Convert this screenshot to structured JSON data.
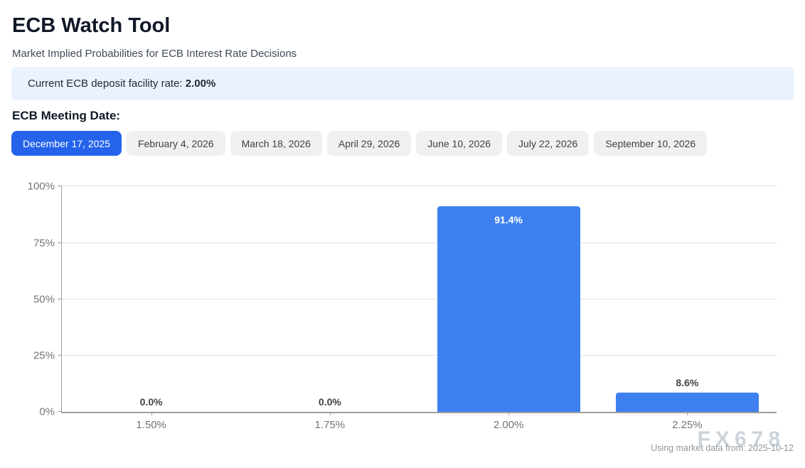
{
  "header": {
    "title": "ECB Watch Tool",
    "subtitle": "Market Implied Probabilities for ECB Interest Rate Decisions"
  },
  "banner": {
    "label": "Current ECB deposit facility rate: ",
    "value": "2.00%"
  },
  "meeting_section": {
    "heading": "ECB Meeting Date:",
    "dates": [
      {
        "label": "December 17, 2025",
        "active": true
      },
      {
        "label": "February 4, 2026",
        "active": false
      },
      {
        "label": "March 18, 2026",
        "active": false
      },
      {
        "label": "April 29, 2026",
        "active": false
      },
      {
        "label": "June 10, 2026",
        "active": false
      },
      {
        "label": "July 22, 2026",
        "active": false
      },
      {
        "label": "September 10, 2026",
        "active": false
      }
    ]
  },
  "chart_data": {
    "type": "bar",
    "title": "",
    "xlabel": "",
    "ylabel": "",
    "categories": [
      "1.50%",
      "1.75%",
      "2.00%",
      "2.25%"
    ],
    "values": [
      0.0,
      0.0,
      91.4,
      8.6
    ],
    "value_labels": [
      "0.0%",
      "0.0%",
      "91.4%",
      "8.6%"
    ],
    "y_ticks": [
      "0%",
      "25%",
      "50%",
      "75%",
      "100%"
    ],
    "ylim": [
      0,
      100
    ],
    "grid": true,
    "legend": false,
    "bar_color": "#3e80f0"
  },
  "footer": {
    "watermark": "FX678",
    "note": "Using market data from: 2025-10-12"
  },
  "colors": {
    "active_tab": "#2563eb",
    "banner_bg": "#e9f2fe",
    "bar": "#3e80f0",
    "axis": "#9e9e9e",
    "grid": "#e2e2e2"
  }
}
